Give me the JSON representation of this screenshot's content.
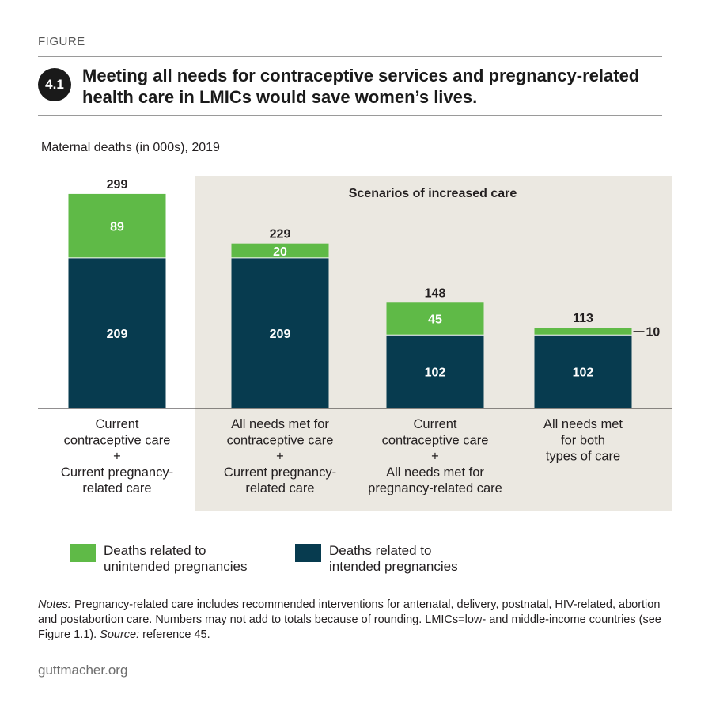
{
  "header": {
    "figure_label": "FIGURE",
    "figure_number": "4.1",
    "title": "Meeting all needs for contraceptive services and pregnancy-related health care in LMICs would save women’s lives."
  },
  "chart_data": {
    "type": "bar",
    "stacked": true,
    "title": "Meeting all needs for contraceptive services and pregnancy-related health care in LMICs would save women’s lives.",
    "ylabel": "Maternal deaths (in 000s), 2019",
    "ylim": [
      0,
      299
    ],
    "grid": false,
    "legend_position": "bottom",
    "highlight_label": "Scenarios of increased care",
    "categories": [
      [
        "Current",
        "contraceptive care",
        "+",
        "Current pregnancy-",
        "related care"
      ],
      [
        "All needs met for",
        "contraceptive care",
        "+",
        "Current pregnancy-",
        "related care"
      ],
      [
        "Current",
        "contraceptive care",
        "+",
        "All needs met for",
        "pregnancy-related care"
      ],
      [
        "All needs met",
        "for both",
        "types of care"
      ]
    ],
    "series": [
      {
        "name": "Deaths related to intended pregnancies",
        "color": "#073b4f",
        "values": [
          209,
          209,
          102,
          102
        ]
      },
      {
        "name": "Deaths related to unintended pregnancies",
        "color": "#5fba47",
        "values": [
          89,
          20,
          45,
          10
        ]
      }
    ],
    "totals": [
      299,
      229,
      148,
      113
    ]
  },
  "legend": {
    "unintended": {
      "line1": "Deaths related to",
      "line2": "unintended pregnancies",
      "color": "#5fba47"
    },
    "intended": {
      "line1": "Deaths related to",
      "line2": "intended pregnancies",
      "color": "#073b4f"
    }
  },
  "notes": {
    "notes_label": "Notes:",
    "notes_text": " Pregnancy-related care includes recommended interventions for antenatal, delivery, postnatal, HIV-related, abortion and postabortion care. Numbers may not add to totals because of rounding. LMICs=low- and middle-income countries (see Figure 1.1). ",
    "source_label": "Source:",
    "source_text": " reference 45."
  },
  "footer": {
    "site": "guttmacher.org"
  },
  "colors": {
    "intended": "#073b4f",
    "unintended": "#5fba47",
    "scenario_bg": "#ebe8e1"
  }
}
